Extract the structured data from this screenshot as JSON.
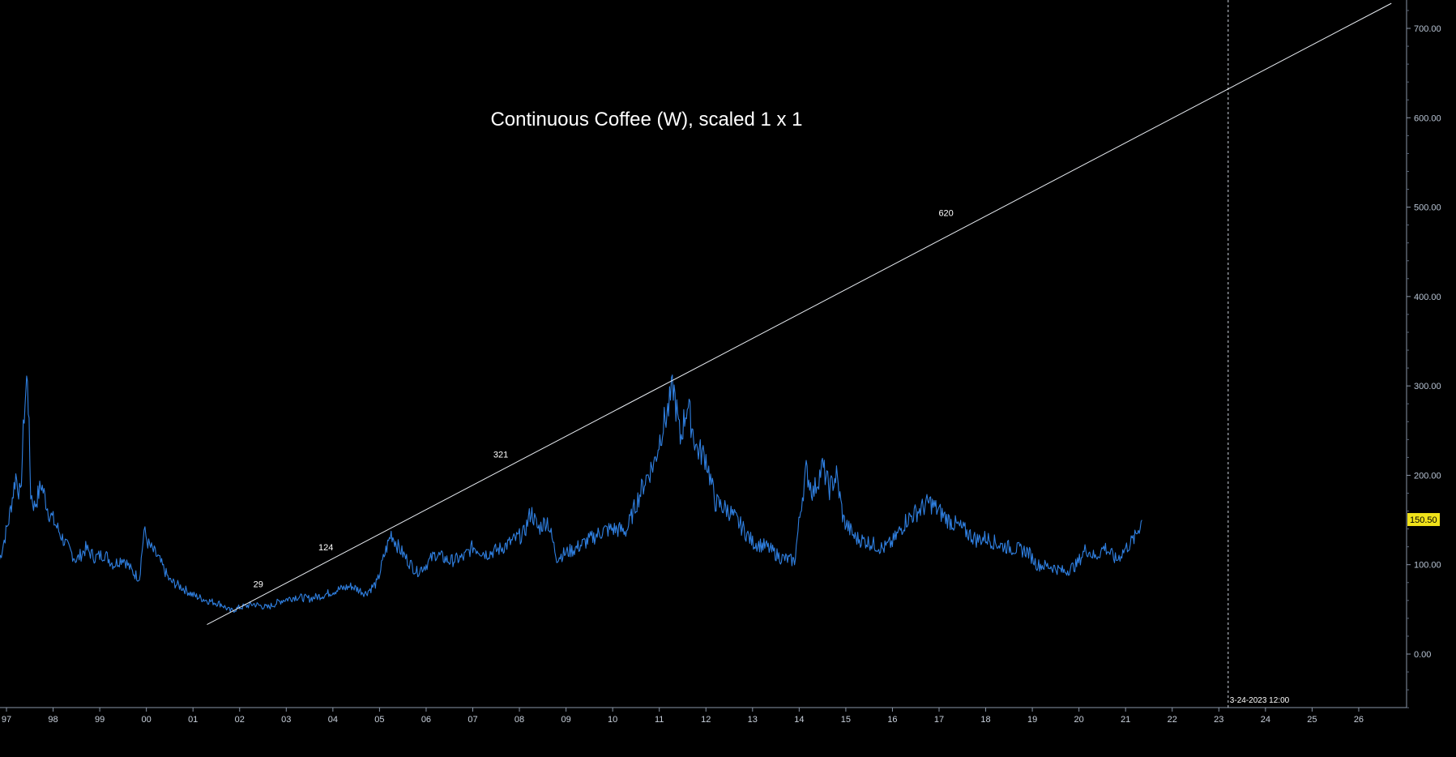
{
  "chart_data": {
    "type": "line",
    "title": "Continuous Coffee (W), scaled 1 x 1",
    "x_labels": [
      "97",
      "98",
      "99",
      "00",
      "01",
      "02",
      "03",
      "04",
      "05",
      "06",
      "07",
      "08",
      "09",
      "10",
      "11",
      "12",
      "13",
      "14",
      "15",
      "16",
      "17",
      "18",
      "19",
      "20",
      "21",
      "22",
      "23",
      "24",
      "25",
      "26"
    ],
    "y_ticks": [
      "0.00",
      "100.00",
      "200.00",
      "300.00",
      "400.00",
      "500.00",
      "600.00",
      "700.00"
    ],
    "ylim": [
      -60,
      730
    ],
    "xlim": [
      1996.85,
      2026.95
    ],
    "grid": false,
    "last_value": "150.50",
    "series": [
      {
        "color": "#2f7fe0",
        "x": [
          1996.85,
          1997.05,
          1997.2,
          1997.3,
          1997.38,
          1997.45,
          1997.52,
          1997.6,
          1997.75,
          1997.9,
          1998.1,
          1998.3,
          1998.5,
          1998.7,
          1998.9,
          1999.1,
          1999.3,
          1999.5,
          1999.7,
          1999.85,
          1999.95,
          2000.05,
          2000.25,
          2000.5,
          2000.75,
          2001.0,
          2001.3,
          2001.6,
          2001.8,
          2002.0,
          2002.3,
          2002.6,
          2002.9,
          2003.2,
          2003.5,
          2003.8,
          2004.1,
          2004.4,
          2004.7,
          2004.95,
          2005.1,
          2005.25,
          2005.4,
          2005.6,
          2005.8,
          2006.0,
          2006.2,
          2006.5,
          2006.8,
          2007.0,
          2007.3,
          2007.6,
          2007.9,
          2008.1,
          2008.25,
          2008.4,
          2008.6,
          2008.8,
          2008.95,
          2009.2,
          2009.5,
          2009.8,
          2010.0,
          2010.3,
          2010.5,
          2010.7,
          2010.9,
          2011.05,
          2011.2,
          2011.3,
          2011.45,
          2011.6,
          2011.8,
          2012.0,
          2012.2,
          2012.5,
          2012.8,
          2013.0,
          2013.3,
          2013.6,
          2013.9,
          2014.05,
          2014.15,
          2014.3,
          2014.5,
          2014.65,
          2014.8,
          2014.95,
          2015.2,
          2015.5,
          2015.8,
          2016.0,
          2016.3,
          2016.6,
          2016.8,
          2016.95,
          2017.2,
          2017.5,
          2017.8,
          2018.0,
          2018.3,
          2018.6,
          2018.9,
          2019.1,
          2019.4,
          2019.7,
          2019.95,
          2020.15,
          2020.35,
          2020.55,
          2020.8,
          2021.0,
          2021.2,
          2021.35
        ],
        "values": [
          105,
          150,
          200,
          175,
          270,
          315,
          180,
          165,
          190,
          160,
          140,
          120,
          105,
          118,
          108,
          112,
          100,
          108,
          92,
          85,
          138,
          122,
          108,
          82,
          75,
          66,
          60,
          56,
          48,
          52,
          56,
          52,
          60,
          64,
          62,
          66,
          72,
          76,
          68,
          80,
          110,
          135,
          120,
          105,
          92,
          100,
          112,
          104,
          108,
          120,
          112,
          118,
          128,
          135,
          160,
          140,
          150,
          108,
          112,
          118,
          128,
          138,
          140,
          138,
          168,
          195,
          215,
          250,
          275,
          300,
          240,
          280,
          230,
          220,
          170,
          160,
          140,
          125,
          120,
          108,
          104,
          170,
          205,
          180,
          210,
          185,
          200,
          150,
          130,
          125,
          118,
          125,
          150,
          162,
          170,
          162,
          150,
          140,
          128,
          130,
          122,
          118,
          115,
          100,
          98,
          92,
          100,
          118,
          108,
          120,
          105,
          118,
          130,
          150
        ]
      }
    ],
    "trendline": {
      "x": [
        2001.3,
        2026.7
      ],
      "y": [
        33,
        728
      ]
    },
    "vline": {
      "x": 2023.2,
      "label": "3-24-2023 12:00"
    },
    "annotations": [
      {
        "text": "29",
        "x": 2002.4,
        "y": 75
      },
      {
        "text": "124",
        "x": 2003.85,
        "y": 116
      },
      {
        "text": "321",
        "x": 2007.6,
        "y": 220
      },
      {
        "text": "620",
        "x": 2017.15,
        "y": 490
      }
    ]
  }
}
